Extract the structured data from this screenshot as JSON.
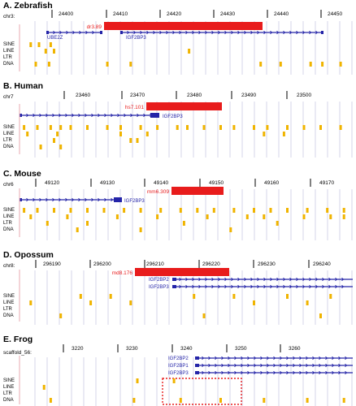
{
  "colors": {
    "highlight": "#e81c1c",
    "gene": "#2424a8",
    "repeat": "#f0b400",
    "grid": "#d4d4ea",
    "axis": "#000000",
    "element_label": "#e81c1c",
    "selection_box": "#e81c1c"
  },
  "track_labels": [
    "SINE",
    "LINE",
    "LTR",
    "DNA"
  ],
  "panels": [
    {
      "title": "A. Zebrafish",
      "chrom": "chr3:",
      "ticks": [
        "24400",
        "24410",
        "24420",
        "24430",
        "24440",
        "24450"
      ],
      "element": {
        "label": "dr3.89"
      },
      "genes": [
        {
          "name": "UBE2Z",
          "strand": "-"
        },
        {
          "name": "IGF2BP3",
          "strand": "-"
        }
      ],
      "rows": [
        [
          0.03,
          0.055,
          0.09
        ],
        [
          0.075,
          0.1,
          0.505
        ],
        [],
        [
          0.045,
          0.085,
          0.26,
          0.33,
          0.72,
          0.78,
          0.87,
          0.905,
          0.96
        ]
      ]
    },
    {
      "title": "B. Human",
      "chrom": "chr7",
      "ticks": [
        "23460",
        "23470",
        "23480",
        "23490",
        "23500"
      ],
      "element": {
        "label": "hs7.101"
      },
      "genes": [
        {
          "name": "IGF2BP3",
          "strand": "-"
        }
      ],
      "rows": [
        [
          0.01,
          0.05,
          0.09,
          0.12,
          0.15,
          0.2,
          0.26,
          0.3,
          0.36,
          0.41,
          0.47,
          0.5,
          0.55,
          0.6,
          0.64,
          0.7,
          0.74,
          0.8,
          0.85,
          0.9,
          0.96
        ],
        [
          0.02,
          0.11,
          0.3,
          0.38,
          0.73,
          0.79
        ],
        [
          0.1,
          0.33,
          0.35
        ],
        [
          0.06,
          0.12
        ]
      ]
    },
    {
      "title": "C. Mouse",
      "chrom": "chr6",
      "ticks": [
        "49120",
        "49130",
        "49140",
        "49150",
        "49160",
        "49170"
      ],
      "element": {
        "label": "mm6.309"
      },
      "genes": [
        {
          "name": "IGF2BP3",
          "strand": "-"
        }
      ],
      "rows": [
        [
          0.01,
          0.05,
          0.1,
          0.15,
          0.2,
          0.25,
          0.31,
          0.36,
          0.42,
          0.48,
          0.53,
          0.58,
          0.64,
          0.7,
          0.75,
          0.8,
          0.86,
          0.92,
          0.97
        ],
        [
          0.03,
          0.14,
          0.29,
          0.41,
          0.56,
          0.68,
          0.73,
          0.85,
          0.93,
          0.97
        ],
        [
          0.08,
          0.2,
          0.49,
          0.77
        ],
        [
          0.17,
          0.36,
          0.63
        ]
      ]
    },
    {
      "title": "D. Opossum",
      "chrom": "chr8:",
      "ticks": [
        "296190",
        "296200",
        "296210",
        "296220",
        "296230",
        "296240"
      ],
      "element": {
        "label": "md8.176"
      },
      "genes": [
        {
          "name": "IGF2BP2",
          "strand": "+"
        },
        {
          "name": "IGF2BP3",
          "strand": "+"
        }
      ],
      "rows": [
        [
          0.18,
          0.27,
          0.52,
          0.64,
          0.8,
          0.93
        ],
        [
          0.03,
          0.21,
          0.33,
          0.7,
          0.86
        ],
        [],
        [
          0.12,
          0.55,
          0.9
        ]
      ]
    },
    {
      "title": "E. Frog",
      "chrom": "scaffold_56:",
      "ticks": [
        "3220",
        "3230",
        "3240",
        "3250",
        "3260"
      ],
      "genes": [
        {
          "name": "IGF2BP2",
          "strand": "+"
        },
        {
          "name": "IGF2BP1",
          "strand": "+"
        },
        {
          "name": "IGF2BP3",
          "strand": "+"
        }
      ],
      "rows": [
        [
          0.35,
          0.46
        ],
        [
          0.07
        ],
        [],
        [
          0.09,
          0.34,
          0.48,
          0.6,
          0.73,
          0.86,
          0.97
        ]
      ]
    }
  ]
}
